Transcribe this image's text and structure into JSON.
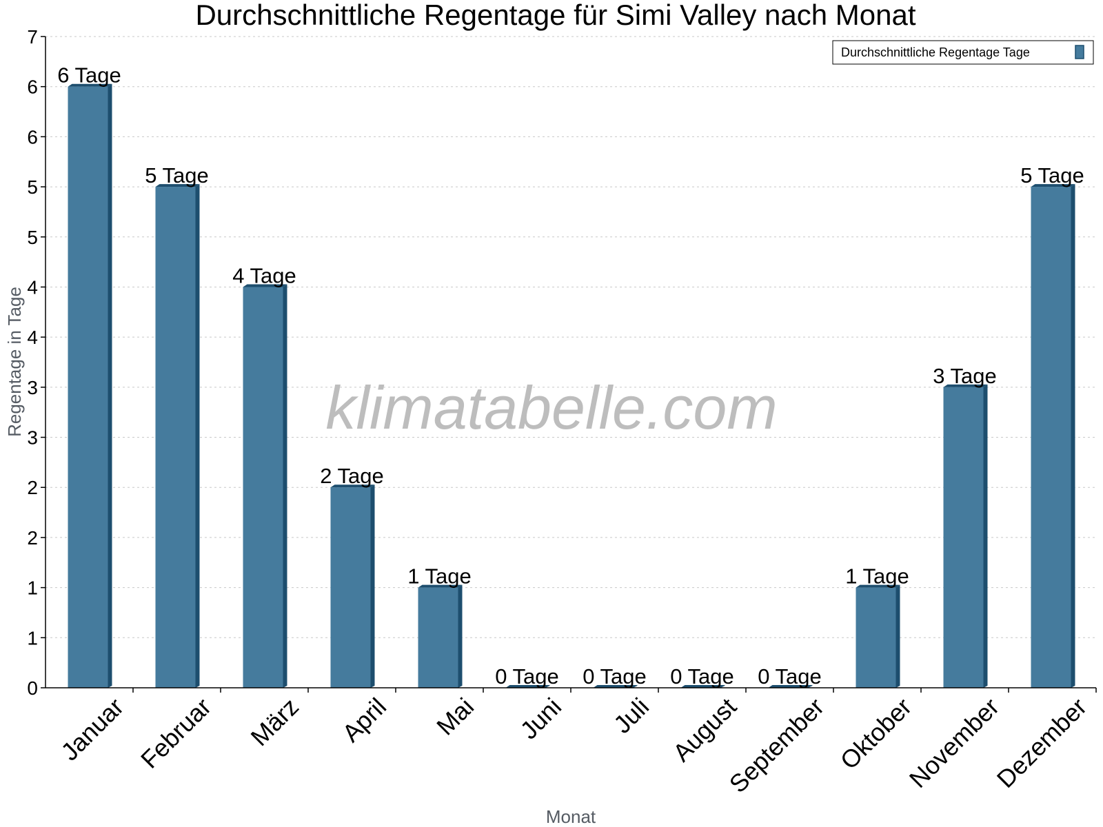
{
  "chart_data": {
    "type": "bar",
    "title": "Durchschnittliche Regentage für Simi Valley nach Monat",
    "xlabel": "Monat",
    "ylabel": "Regentage in Tage",
    "categories": [
      "Januar",
      "Februar",
      "März",
      "April",
      "Mai",
      "Juni",
      "Juli",
      "August",
      "September",
      "Oktober",
      "November",
      "Dezember"
    ],
    "series": [
      {
        "name": "Durchschnittliche Regentage Tage",
        "values": [
          6,
          5,
          4,
          2,
          1,
          0,
          0,
          0,
          0,
          1,
          3,
          5
        ],
        "labels": [
          "6 Tage",
          "5 Tage",
          "4 Tage",
          "2 Tage",
          "1 Tage",
          "0 Tage",
          "0 Tage",
          "0 Tage",
          "0 Tage",
          "1 Tage",
          "3 Tage",
          "5 Tage"
        ]
      }
    ],
    "ylim": [
      0,
      6.5
    ],
    "yticks": [
      0,
      0.5,
      1,
      1.5,
      2,
      2.5,
      3,
      3.5,
      4,
      4.5,
      5,
      5.5,
      6,
      6.5
    ],
    "ytick_labels": [
      "0",
      "1",
      "1",
      "2",
      "2",
      "3",
      "3",
      "4",
      "4",
      "5",
      "5",
      "6",
      "6",
      "7"
    ],
    "grid": true,
    "legend_position": "top-right",
    "bar_color": "#457b9d",
    "bar_side_color": "#1d4e6e",
    "watermark": "klimatabelle.com"
  }
}
